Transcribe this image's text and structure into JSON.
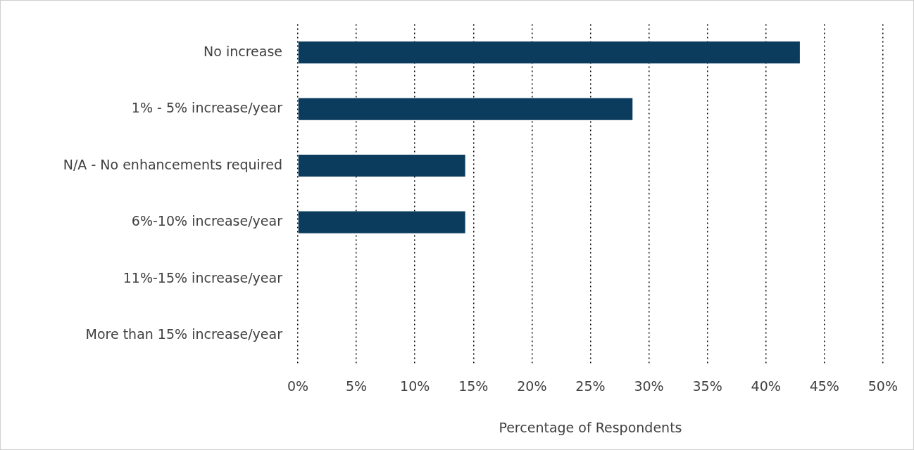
{
  "chart_data": {
    "type": "bar",
    "orientation": "horizontal",
    "categories": [
      "No increase",
      "1% - 5% increase/year",
      "N/A - No enhancements required",
      "6%-10% increase/year",
      "11%-15% increase/year",
      "More than 15% increase/year"
    ],
    "values": [
      42.9,
      28.6,
      14.3,
      14.3,
      0,
      0
    ],
    "color": "#0b3c5d",
    "xlabel": "Percentage of Respondents",
    "xlim": [
      0,
      50
    ],
    "xticks": [
      {
        "value": 0,
        "label": "0%"
      },
      {
        "value": 5,
        "label": "5%"
      },
      {
        "value": 10,
        "label": "10%"
      },
      {
        "value": 15,
        "label": "15%"
      },
      {
        "value": 20,
        "label": "20%"
      },
      {
        "value": 25,
        "label": "25%"
      },
      {
        "value": 30,
        "label": "30%"
      },
      {
        "value": 35,
        "label": "35%"
      },
      {
        "value": 40,
        "label": "40%"
      },
      {
        "value": 45,
        "label": "45%"
      },
      {
        "value": 50,
        "label": "50%"
      }
    ],
    "grid": "x"
  }
}
